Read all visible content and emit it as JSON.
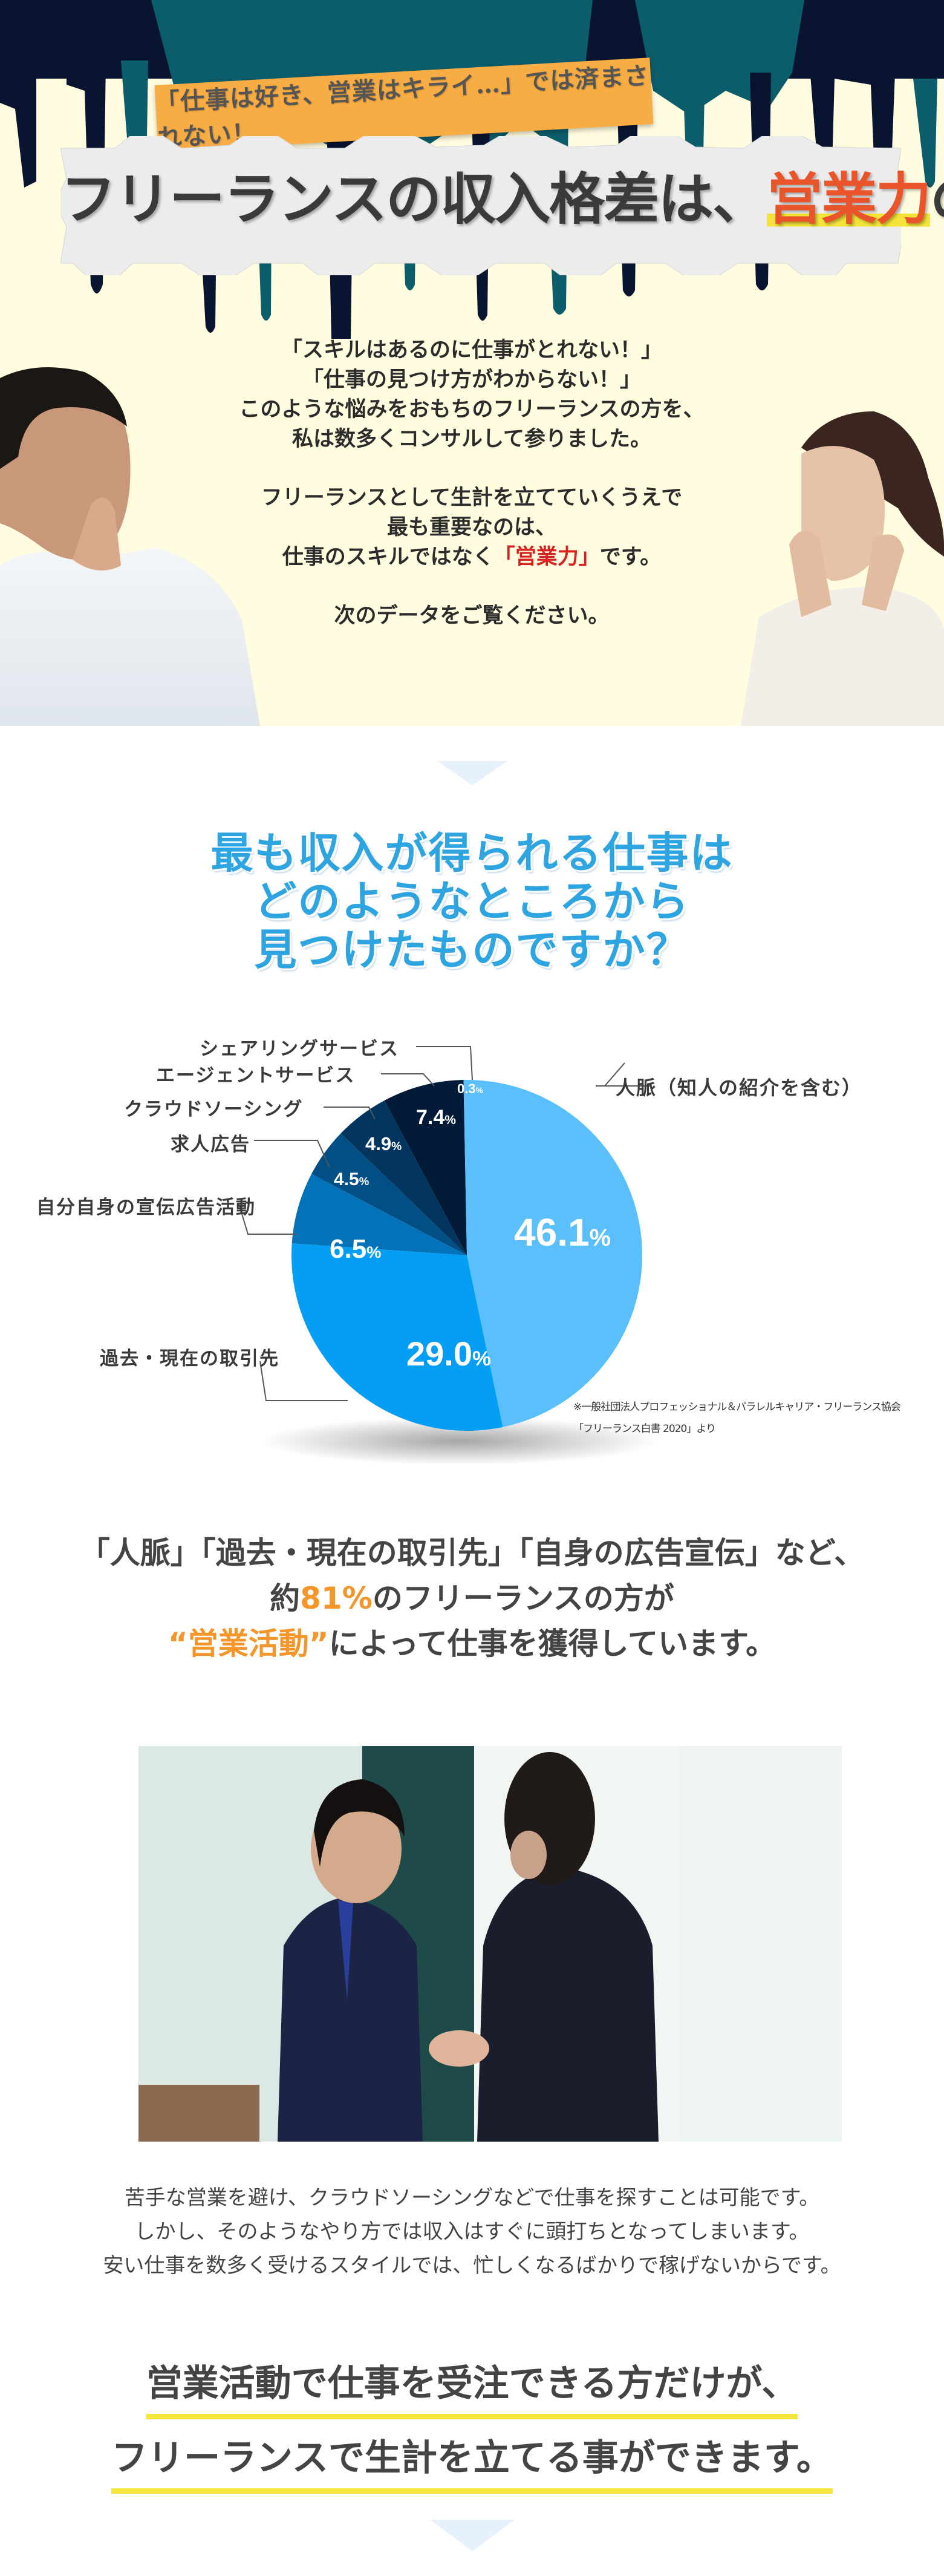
{
  "hero": {
    "tag_text": "「仕事は好き、営業はキライ…」では済まされない！",
    "title_before": "フリーランスの収入格差は、",
    "title_accent": "営業力",
    "title_after": "の差！",
    "copy": {
      "line1": "「スキルはあるのに仕事がとれない！」",
      "line2": "「仕事の見つけ方がわからない！」",
      "line3": "このような悩みをおもちのフリーランスの方を、",
      "line4": "私は数多くコンサルして参りました。",
      "line5": "フリーランスとして生計を立てていくうえで",
      "line6": "最も重要なのは、",
      "line7_before": "仕事のスキルではなく",
      "line7_accent": "「営業力」",
      "line7_after": "です。",
      "line8": "次のデータをご覧ください。"
    },
    "colors": {
      "background": "#fffcdf",
      "tag": "#f8ad44",
      "accent": "#e9542a",
      "highlight": "#f3e33a",
      "red": "#d7211f"
    }
  },
  "question": {
    "line1": "最も収入が得られる仕事は",
    "line2": "どのようなところから",
    "line3": "見つけたものですか？",
    "color": "#2ea5e0"
  },
  "chart_data": {
    "type": "pie",
    "title": "最も収入が得られる仕事はどのようなところから見つけたものですか？",
    "categories": [
      "人脈（知人の紹介を含む）",
      "過去・現在の取引先",
      "自分自身の宣伝広告活動",
      "求人広告",
      "クラウドソーシング",
      "エージェントサービス",
      "シェアリングサービス"
    ],
    "values": [
      46.1,
      29.0,
      6.5,
      4.5,
      4.9,
      7.4,
      0.3
    ],
    "labels": [
      "46.1%",
      "29.0%",
      "6.5%",
      "4.5%",
      "4.9%",
      "7.4%",
      "0.3%"
    ],
    "colors": [
      "#5bbffc",
      "#049ff4",
      "#0372b8",
      "#024f86",
      "#02365f",
      "#011a38",
      "#5bbffc"
    ],
    "unit": "%",
    "source_line1": "※一般社団法人プロフェッショナル＆パラレルキャリア・フリーランス協会",
    "source_line2": "「フリーランス白書 2020」より"
  },
  "stat": {
    "line1": "「人脈」「過去・現在の取引先」「自身の広告宣伝」など、",
    "line2_before": "約",
    "line2_accent": "81%",
    "line2_after": "のフリーランスの方が",
    "line3_accent": "“営業活動”",
    "line3_after": "によって仕事を獲得しています。",
    "accent_color": "#f4962a"
  },
  "body": {
    "line1": "苦手な営業を避け、クラウドソーシングなどで仕事を探すことは可能です。",
    "line2": "しかし、そのようなやり方では収入はすぐに頭打ちとなってしまいます。",
    "line3": "安い仕事を数多く受けるスタイルでは、忙しくなるばかりで稼げないからです。"
  },
  "conclusion": {
    "line1": "営業活動で仕事を受注できる方だけが、",
    "line2": "フリーランスで生計を立てる事ができます。",
    "underline_color": "#f7e63c"
  }
}
